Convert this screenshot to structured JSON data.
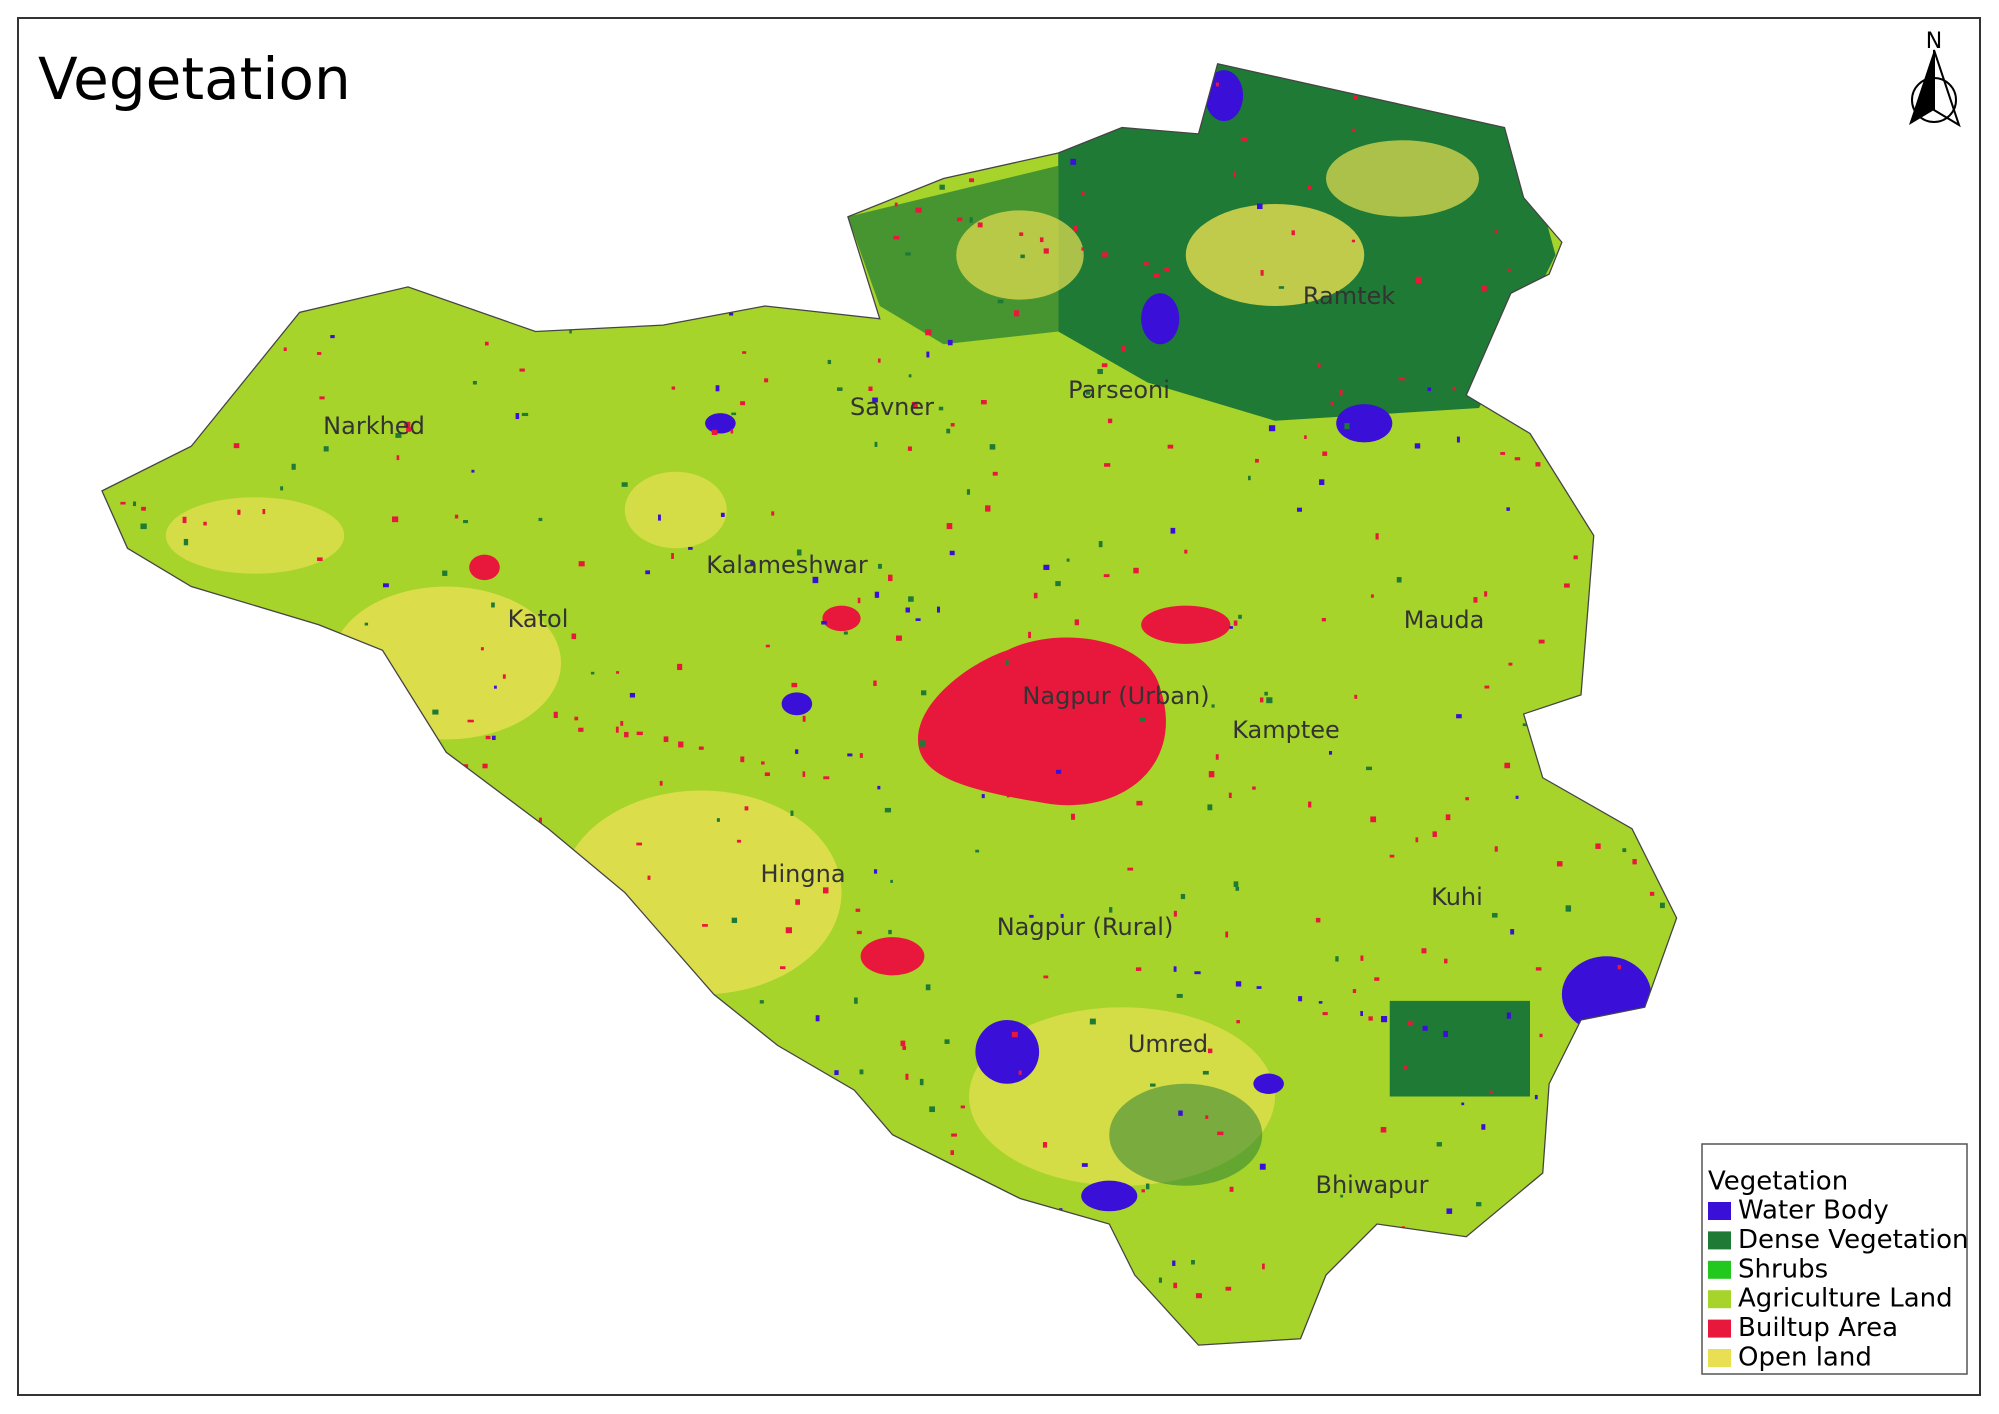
{
  "header": {
    "title": "Vegetation"
  },
  "north_arrow": {
    "label": "N"
  },
  "places": [
    {
      "label": "Ramtek"
    },
    {
      "label": "Parseoni"
    },
    {
      "label": "Savner"
    },
    {
      "label": "Narkhed"
    },
    {
      "label": "Kalameshwar"
    },
    {
      "label": "Katol"
    },
    {
      "label": "Mauda"
    },
    {
      "label": "Nagpur (Urban)"
    },
    {
      "label": "Kamptee"
    },
    {
      "label": "Hingna"
    },
    {
      "label": "Kuhi"
    },
    {
      "label": "Nagpur (Rural)"
    },
    {
      "label": "Umred"
    },
    {
      "label": "Bhiwapur"
    }
  ],
  "legend": {
    "title": "Vegetation",
    "items": [
      {
        "label": "Water Body",
        "color": "#3a10d8"
      },
      {
        "label": "Dense Vegetation",
        "color": "#1f7a35"
      },
      {
        "label": "Shrubs",
        "color": "#22c81e"
      },
      {
        "label": "Agriculture Land",
        "color": "#a6d42a"
      },
      {
        "label": "Builtup Area",
        "color": "#e8183c"
      },
      {
        "label": "Open land",
        "color": "#e8e052"
      }
    ]
  }
}
